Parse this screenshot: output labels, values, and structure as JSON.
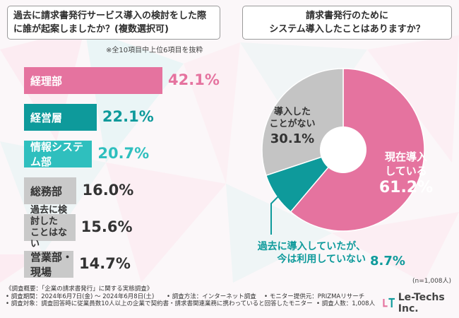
{
  "question_left": "過去に請求書発行サービス導入の検討をした際に誰が起案しましたか？(複数選択可)",
  "note": "※全10項目中上位6項目を抜粋",
  "question_right_line1": "請求書発行のために",
  "question_right_line2": "システム導入したことはありますか？",
  "sample_size": "(n=1,008人)",
  "footer": {
    "line1": "《調査概要：「企業の請求書発行」に関する実態調査》",
    "line2a": "• 調査期間：2024年6月7日(金) 〜 2024年6月8日(土)",
    "line2b": "• 調査方法：インターネット調査",
    "line2c": "• モニター提供元：PRIZMAリサーチ",
    "line3a": "• 調査対象：調査回答時に従業員数10人以上の企業で契約書・請求書関連業務に携わっていると回答したモニター",
    "line3b": "• 調査人数：1,008人"
  },
  "logo_text": "Le-Techs Inc.",
  "colors": {
    "pink": "#e5739f",
    "teal": "#0e9a9b",
    "light_teal": "#2fbfbe",
    "gray": "#c9c9c9",
    "pie_gray": "#c4c4c4"
  },
  "chart_data": [
    {
      "type": "bar",
      "title": "過去に請求書発行サービス導入の検討をした際に誰が起案しましたか？(複数選択可)",
      "unit": "%",
      "categories": [
        "経理部",
        "経営層",
        "情報システム部",
        "総務部",
        "過去に検討したことはない",
        "営業部・現場"
      ],
      "labels": [
        [
          "経理部"
        ],
        [
          "経営層"
        ],
        [
          "情報システム部"
        ],
        [
          "総務部"
        ],
        [
          "過去に検討した",
          "ことはない"
        ],
        [
          "営業部・現場"
        ]
      ],
      "values": [
        42.1,
        22.1,
        20.7,
        16.0,
        15.6,
        14.7
      ],
      "value_labels": [
        "42.1%",
        "22.1%",
        "20.7%",
        "16.0%",
        "15.6%",
        "14.7%"
      ],
      "bar_colors": [
        "#e5739f",
        "#0e9a9b",
        "#2fbfbe",
        "#c9c9c9",
        "#c9c9c9",
        "#c9c9c9"
      ],
      "value_colors": [
        "#e5739f",
        "#0e9a9b",
        "#2fbfbe",
        "#333333",
        "#333333",
        "#333333"
      ]
    },
    {
      "type": "pie",
      "title": "請求書発行のためにシステム導入したことはありますか？",
      "categories": [
        "現在導入している",
        "過去に導入していたが、今は利用していない",
        "導入したことがない"
      ],
      "values": [
        61.2,
        8.7,
        30.1
      ],
      "labels": {
        "now": [
          "現在導入",
          "している"
        ],
        "past": [
          "過去に導入していたが、",
          "今は利用していない"
        ],
        "never": [
          "導入した",
          "ことがない"
        ]
      },
      "value_labels": [
        "61.2%",
        "8.7%",
        "30.1%"
      ],
      "slice_colors": [
        "#e5739f",
        "#0e9a9b",
        "#c4c4c4"
      ]
    }
  ]
}
